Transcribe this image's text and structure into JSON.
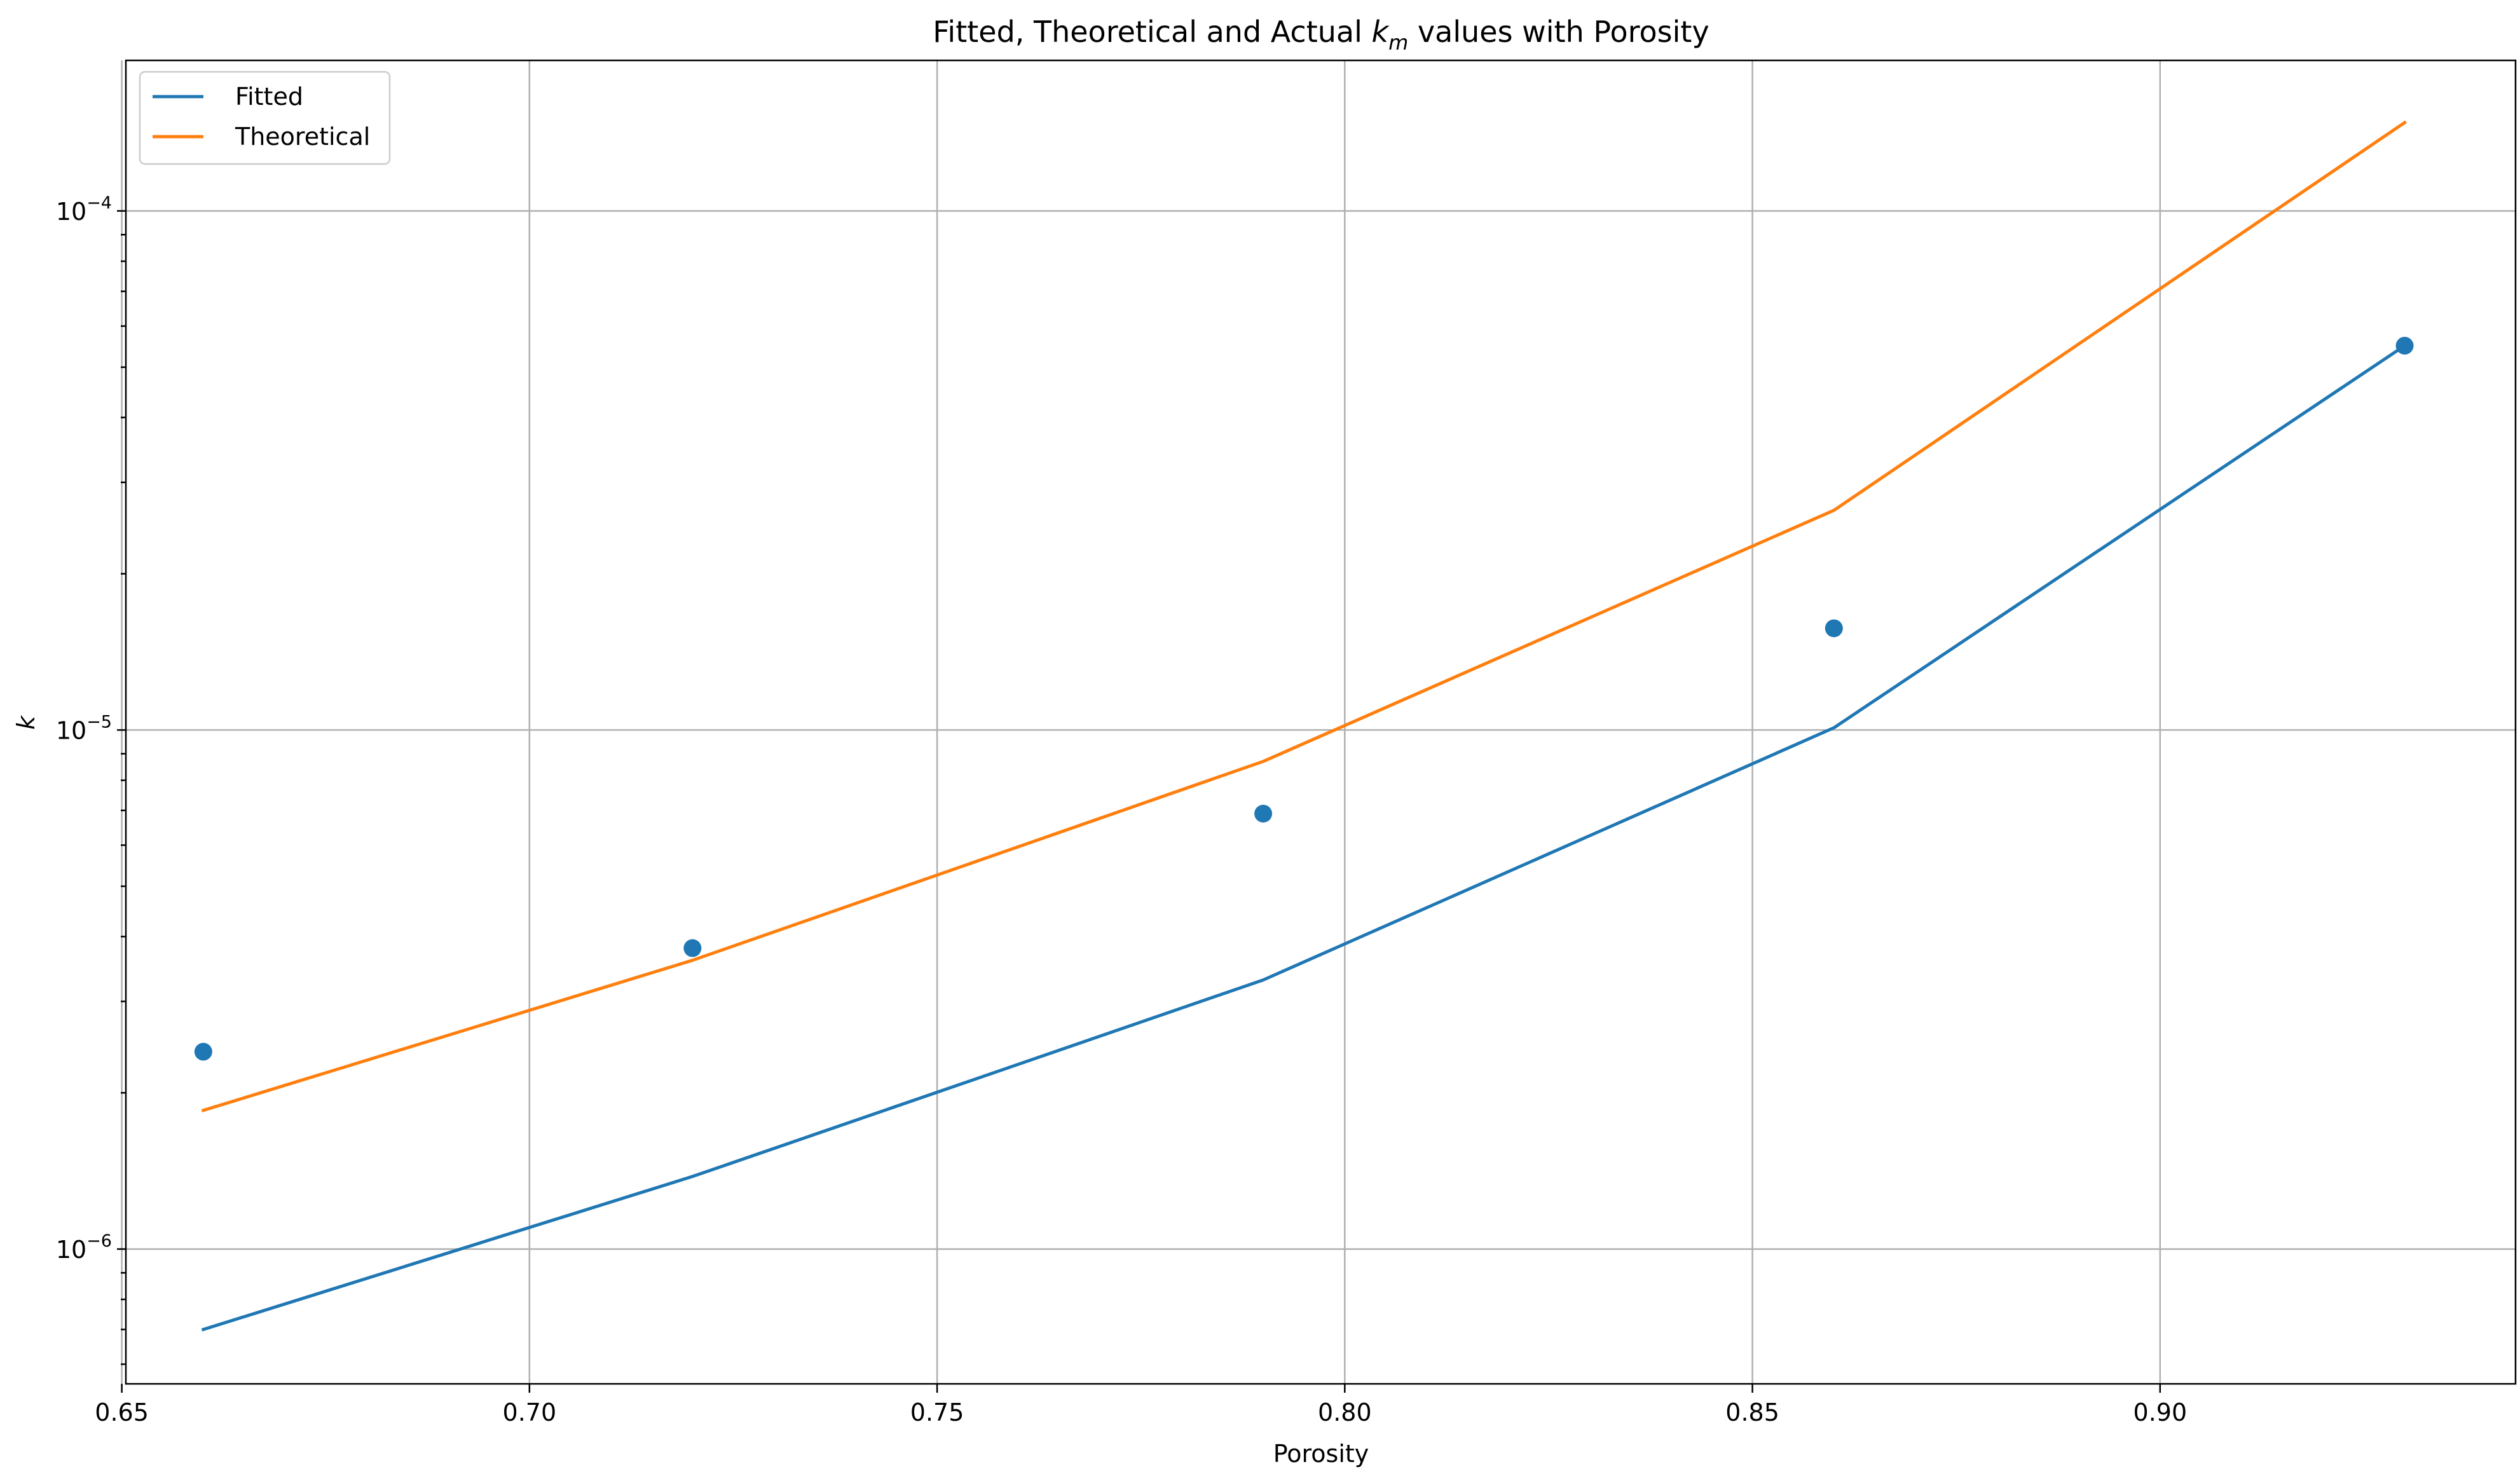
{
  "chart_data": {
    "type": "line",
    "title": {
      "prefix": "Fitted, Theoretical and Actual ",
      "symbol": "k",
      "subscript": "m",
      "suffix": " values with Porosity"
    },
    "xlabel": "Porosity",
    "ylabel": "k",
    "x_scale": "linear",
    "y_scale": "log",
    "xlim": [
      0.6505,
      0.9436
    ],
    "ylim": [
      5.5e-07,
      0.000195
    ],
    "x_ticks": [
      {
        "value": 0.65,
        "label": "0.65"
      },
      {
        "value": 0.7,
        "label": "0.70"
      },
      {
        "value": 0.75,
        "label": "0.75"
      },
      {
        "value": 0.8,
        "label": "0.80"
      },
      {
        "value": 0.85,
        "label": "0.85"
      },
      {
        "value": 0.9,
        "label": "0.90"
      }
    ],
    "y_ticks": [
      {
        "value": 1e-06,
        "base": "10",
        "exponent": "−6"
      },
      {
        "value": 1e-05,
        "base": "10",
        "exponent": "−5"
      },
      {
        "value": 0.0001,
        "base": "10",
        "exponent": "−4"
      }
    ],
    "grid": true,
    "legend_position": "top-left",
    "series": [
      {
        "name": "Fitted",
        "kind": "line",
        "color": "#1f77b4",
        "x": [
          0.66,
          0.72,
          0.79,
          0.86,
          0.93
        ],
        "y": [
          7e-07,
          1.38e-06,
          3.3e-06,
          1.01e-05,
          5.5e-05
        ]
      },
      {
        "name": "Theoretical",
        "kind": "line",
        "color": "#ff7f0e",
        "x": [
          0.66,
          0.72,
          0.79,
          0.86,
          0.93
        ],
        "y": [
          1.85e-06,
          3.6e-06,
          8.7e-06,
          2.65e-05,
          0.000148
        ]
      },
      {
        "kind": "scatter",
        "color": "#1f77b4",
        "x": [
          0.66,
          0.72,
          0.79,
          0.86,
          0.93
        ],
        "y": [
          2.4e-06,
          3.8e-06,
          6.9e-06,
          1.57e-05,
          5.5e-05
        ]
      }
    ]
  }
}
